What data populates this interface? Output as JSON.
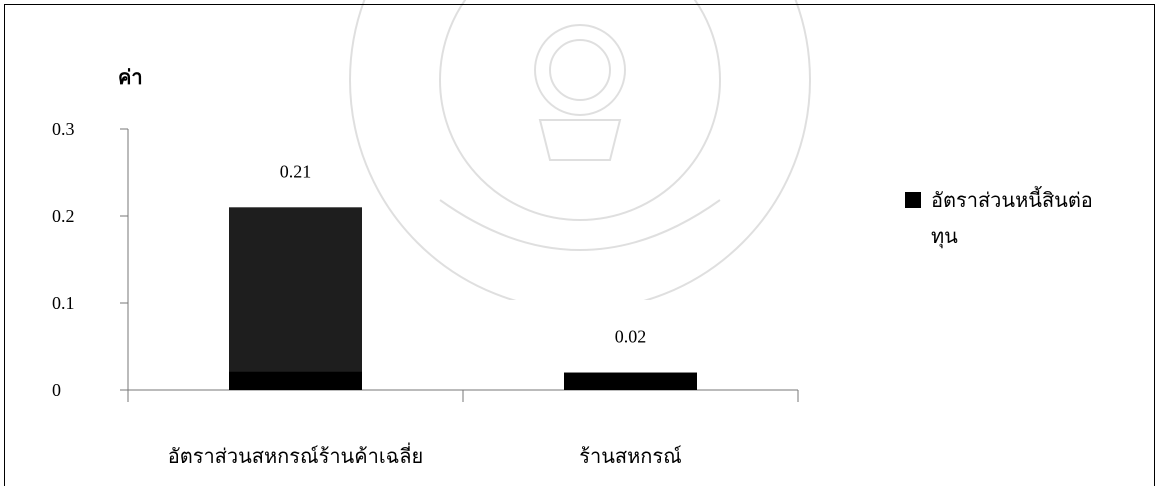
{
  "chart_data": {
    "type": "bar",
    "ylabel": "ค่า",
    "xlabel": "",
    "ylim": [
      0,
      0.3
    ],
    "yticks": [
      "0",
      "0.1",
      "0.2",
      "0.3"
    ],
    "categories": [
      "อัตราส่วนสหกรณ์ร้านค้าเฉลี่ย",
      "ร้านสหกรณ์"
    ],
    "series": [
      {
        "name": "อัตราส่วนหนี้สินต่อทุน",
        "values": [
          0.21,
          0.02
        ]
      }
    ],
    "data_labels": [
      "0.21",
      "0.02"
    ],
    "legend_position": "right",
    "grid": false,
    "colors": {
      "bar_main": "#1e1e1e",
      "bar_base": "#000000"
    }
  }
}
